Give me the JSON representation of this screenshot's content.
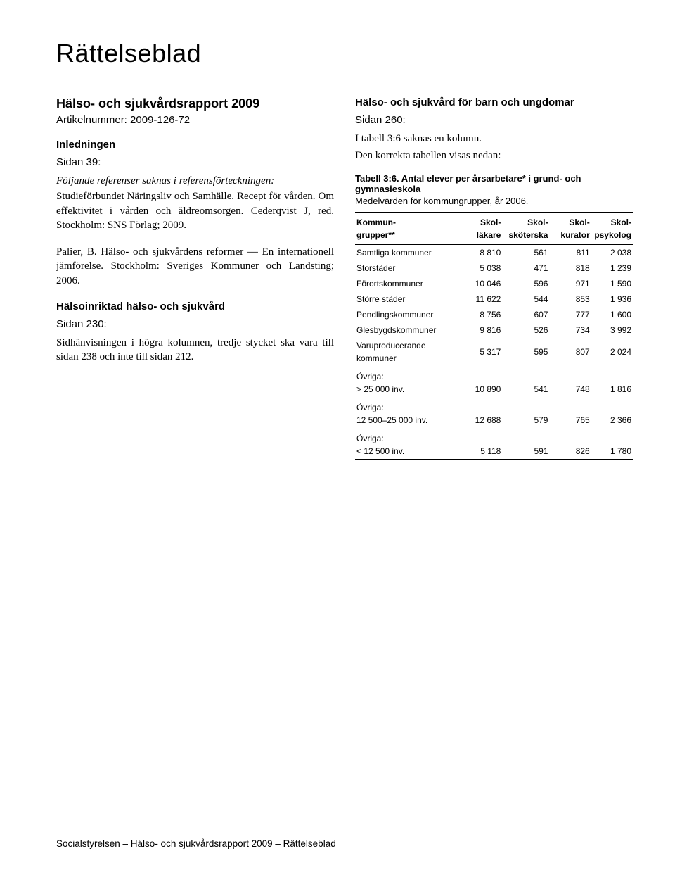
{
  "colors": {
    "background": "#ffffff",
    "text": "#000000",
    "rule": "#000000"
  },
  "title": "Rättelseblad",
  "left": {
    "report_title": "Hälso- och sjukvårdsrapport 2009",
    "article_no": "Artikelnummer: 2009-126-72",
    "sec1_heading": "Inledningen",
    "sec1_page": "Sidan 39:",
    "sec1_intro": "Följande referenser saknas i referensförteckningen:",
    "sec1_ref1": "Studieförbundet Näringsliv och Samhälle. Recept för vården. Om effektivitet i vården och äldreomsorgen. Cederqvist J, red. Stockholm: SNS Förlag; 2009.",
    "sec1_ref2": "Palier, B. Hälso- och sjukvårdens reformer — En internationell jämförelse. Stockholm: Sveriges Kommuner och Landsting; 2006.",
    "sec2_heading": "Hälsoinriktad hälso- och sjukvård",
    "sec2_page": "Sidan 230:",
    "sec2_body": "Sidhänvisningen i högra kolumnen, tredje stycket ska vara till sidan 238 och inte till sidan 212."
  },
  "right": {
    "sec3_heading": "Hälso- och sjukvård för barn och ungdomar",
    "sec3_page": "Sidan 260:",
    "sec3_line1": "I tabell 3:6 saknas en kolumn.",
    "sec3_line2": "Den korrekta tabellen visas nedan:",
    "table_title": "Tabell 3:6. Antal elever per årsarbetare* i grund- och gymnasieskola",
    "table_subtitle": "Medelvärden för kommungrupper, år 2006.",
    "table": {
      "columns_l1": [
        "Kommun-",
        "Skol-",
        "Skol-",
        "Skol-",
        "Skol-"
      ],
      "columns_l2": [
        "grupper**",
        "läkare",
        "sköterska",
        "kurator",
        "psykolog"
      ],
      "col_widths_pct": [
        38,
        15,
        17,
        15,
        15
      ],
      "rows": [
        {
          "label": "Samtliga kommuner",
          "v": [
            "8 810",
            "561",
            "811",
            "2 038"
          ]
        },
        {
          "label": "Storstäder",
          "v": [
            "5 038",
            "471",
            "818",
            "1 239"
          ]
        },
        {
          "label": "Förortskommuner",
          "v": [
            "10 046",
            "596",
            "971",
            "1 590"
          ]
        },
        {
          "label": "Större städer",
          "v": [
            "11 622",
            "544",
            "853",
            "1 936"
          ]
        },
        {
          "label": "Pendlingskommuner",
          "v": [
            "8 756",
            "607",
            "777",
            "1 600"
          ]
        },
        {
          "label": "Glesbygdskommuner",
          "v": [
            "9 816",
            "526",
            "734",
            "3 992"
          ]
        },
        {
          "label": "Varuproducerande kommuner",
          "v": [
            "5 317",
            "595",
            "807",
            "2 024"
          ]
        },
        {
          "label": "Övriga:\n> 25 000 inv.",
          "v": [
            "10 890",
            "541",
            "748",
            "1 816"
          ],
          "twoLine": true
        },
        {
          "label": "Övriga:\n12 500–25 000 inv.",
          "v": [
            "12 688",
            "579",
            "765",
            "2 366"
          ],
          "twoLine": true
        },
        {
          "label": "Övriga:\n< 12 500 inv.",
          "v": [
            "5 118",
            "591",
            "826",
            "1 780"
          ],
          "twoLine": true
        }
      ]
    }
  },
  "footer": "Socialstyrelsen – Hälso- och sjukvårdsrapport 2009 – Rättelseblad"
}
